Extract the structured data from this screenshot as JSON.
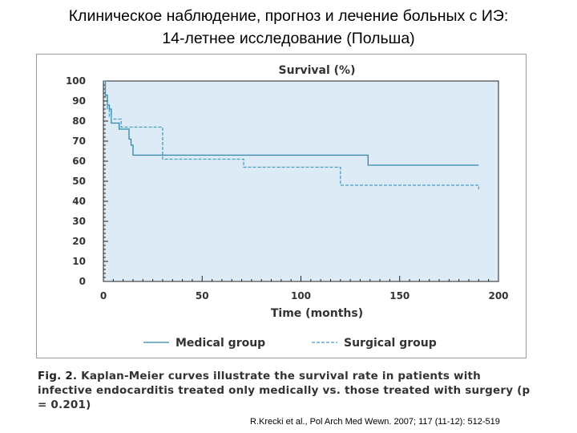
{
  "slide": {
    "title_line1": "Клиническое наблюдение, прогноз и лечение больных с ИЭ:",
    "title_line2": "14-летнее исследование (Польша)",
    "caption_label": "Fig. 2.",
    "caption_text": "Kaplan-Meier curves illustrate the survival rate in patients with infective endocarditis treated only medically vs. those treated with surgery (p = 0.201)",
    "citation": "R.Krecki et al., Pol Arch Med Wewn. 2007; 117 (11-12): 512-519"
  },
  "colors": {
    "plot_bg": "#dcebf6",
    "medical": "#2f86a6",
    "surgical": "#4a9cc2",
    "axis": "#222222",
    "text": "#333333"
  },
  "chart_data": {
    "type": "line",
    "title": "Survival (%)",
    "xlabel": "Time (months)",
    "ylabel": "",
    "xlim": [
      0,
      200
    ],
    "ylim": [
      0,
      100
    ],
    "x_ticks": [
      0,
      50,
      100,
      150,
      200
    ],
    "y_ticks": [
      0,
      10,
      20,
      30,
      40,
      50,
      60,
      70,
      80,
      90,
      100
    ],
    "grid": false,
    "legend_position": "bottom",
    "series": [
      {
        "name": "Medical group",
        "style": "solid",
        "x": [
          0,
          1,
          2,
          3,
          4,
          8,
          12,
          13,
          14,
          15,
          134,
          134,
          190
        ],
        "y": [
          100,
          93,
          88,
          86,
          79,
          76,
          76,
          71,
          68,
          63,
          63,
          58,
          58
        ]
      },
      {
        "name": "Surgical group",
        "style": "dashed",
        "x": [
          0,
          1,
          2,
          3,
          4,
          9,
          30,
          71,
          120,
          190
        ],
        "y": [
          100,
          92,
          86,
          82,
          81,
          77,
          61,
          57,
          48,
          46
        ]
      }
    ]
  }
}
